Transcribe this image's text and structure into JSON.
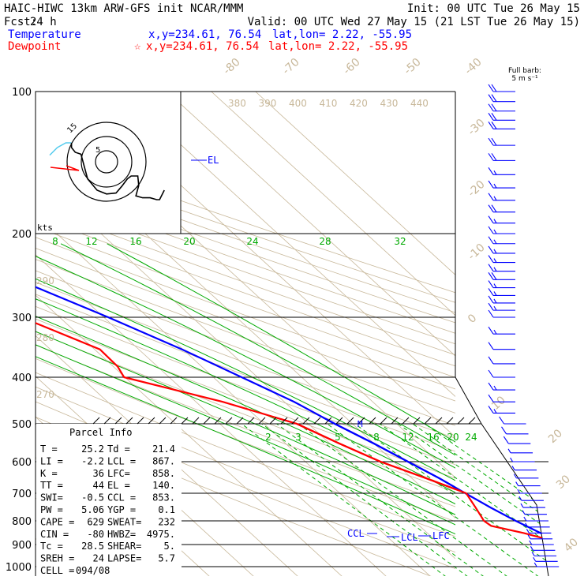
{
  "header": {
    "line1_left": "HAIC-HIWC 13km ARW-GFS init   NCAR/MMM",
    "line1_right": "Init: 00 UTC Tue 26 May 15",
    "fcst_label": "Fcst:",
    "fcst_value": "24 h",
    "valid": "Valid: 00 UTC Wed 27 May 15 (21 LST Tue 26 May 15)",
    "temp_label": "Temperature",
    "temp_xy": "x,y=234.61, 76.54",
    "temp_latlon": "lat,lon=  2.22, -55.95",
    "dew_label": "Dewpoint",
    "dew_marker": "☆",
    "dew_xy": "x,y=234.61, 76.54",
    "dew_latlon": "lat,lon=  2.22, -55.95"
  },
  "barb_key": {
    "line1": "Full barb:",
    "line2": "5 m s⁻¹"
  },
  "hodograph": {
    "units": "kts",
    "ring_labels": [
      "5",
      "15"
    ]
  },
  "parcel_info": {
    "title": "Parcel Info",
    "rows": [
      [
        "T  =",
        "25.2",
        "Td =",
        "21.4"
      ],
      [
        "LI =",
        "-2.2",
        "LCL =",
        "867."
      ],
      [
        "K  =",
        "36",
        "LFC=",
        "858."
      ],
      [
        "TT =",
        "44",
        "EL =",
        "140."
      ],
      [
        "SWI=",
        "-0.5",
        "CCL =",
        "853."
      ],
      [
        "PW =",
        "5.06",
        "YGP =",
        "0.1"
      ],
      [
        "CAPE =",
        "629",
        "SWEAT=",
        "232"
      ],
      [
        "CIN =",
        "-80",
        "HWBZ=",
        "4975."
      ],
      [
        "Tc =",
        "28.5",
        "SHEAR=",
        "5."
      ],
      [
        "SREH =",
        "24",
        "LAPSE=",
        "5.7"
      ],
      [
        "CELL =",
        "094/08",
        "",
        ""
      ]
    ]
  },
  "level_labels": {
    "EL": "EL",
    "CCL": "CCL",
    "LCL": "LCL",
    "LFC": "LFC",
    "M": "M"
  },
  "colors": {
    "temperature": "#0000ff",
    "dewpoint": "#ff0000",
    "moist_adiabat": "#00aa00",
    "dry_adiabat": "#c8b89a",
    "mixing_ratio": "#00aa00",
    "isobar": "#000000",
    "hodo_track": "#000000",
    "hodo_low": "#ff0000",
    "hodo_surface": "#55ccee"
  },
  "chart_data": {
    "type": "line",
    "xlabel": "",
    "ylabel": "",
    "pressure_ticks": [
      100,
      200,
      300,
      400,
      500,
      600,
      700,
      800,
      900,
      1000
    ],
    "isotherm_labels": [
      -80,
      -70,
      -60,
      -50,
      -40,
      -30,
      -20,
      -10,
      0,
      10,
      20,
      30,
      40
    ],
    "theta_labels_top": [
      380,
      390,
      400,
      410,
      420,
      430,
      440
    ],
    "theta_labels_left": [
      290,
      280,
      270
    ],
    "moist_adiabat_labels": [
      8,
      12,
      16,
      20,
      24,
      28,
      32
    ],
    "mixing_ratio_labels": [
      2,
      3,
      5,
      8,
      12,
      16,
      20,
      24
    ],
    "series": [
      {
        "name": "Temperature",
        "points": [
          [
            1000,
            24.5
          ],
          [
            960,
            23.2
          ],
          [
            930,
            20.6
          ],
          [
            900,
            18.4
          ],
          [
            850,
            15.6
          ],
          [
            800,
            13.0
          ],
          [
            750,
            10.6
          ],
          [
            700,
            8.4
          ],
          [
            650,
            6.2
          ],
          [
            600,
            3.2
          ],
          [
            550,
            0.0
          ],
          [
            500,
            -4.0
          ],
          [
            450,
            -7.8
          ],
          [
            400,
            -13.6
          ],
          [
            350,
            -20.2
          ],
          [
            300,
            -29.0
          ],
          [
            250,
            -40.2
          ],
          [
            200,
            -52.0
          ],
          [
            175,
            -60.0
          ],
          [
            150,
            -68.0
          ],
          [
            140,
            -71.0
          ],
          [
            125,
            -74.0
          ],
          [
            110,
            -71.5
          ],
          [
            100,
            -68.0
          ]
        ]
      },
      {
        "name": "Dewpoint",
        "points": [
          [
            1000,
            21.4
          ],
          [
            960,
            20.6
          ],
          [
            930,
            20.0
          ],
          [
            900,
            18.8
          ],
          [
            850,
            11.8
          ],
          [
            820,
            6.2
          ],
          [
            800,
            5.8
          ],
          [
            750,
            7.2
          ],
          [
            700,
            8.6
          ],
          [
            650,
            3.2
          ],
          [
            600,
            -3.0
          ],
          [
            550,
            -7.8
          ],
          [
            500,
            -12.6
          ],
          [
            450,
            -24.0
          ],
          [
            400,
            -40.2
          ],
          [
            380,
            -39.0
          ],
          [
            350,
            -38.8
          ],
          [
            300,
            -48.6
          ],
          [
            250,
            -58.6
          ],
          [
            200,
            -70.0
          ],
          [
            150,
            -80.5
          ],
          [
            125,
            -87.5
          ],
          [
            115,
            -88.5
          ],
          [
            100,
            -87.0
          ]
        ]
      }
    ],
    "hodograph": [
      [
        -6.0,
        -0.7
      ],
      [
        -5.2,
        -1.5
      ],
      [
        -4.3,
        -2.0
      ],
      [
        -3.7,
        -2.0
      ],
      [
        -3.7,
        -1.5
      ],
      [
        -3.3,
        -1.0
      ],
      [
        -2.7,
        -0.8
      ],
      [
        -2.0,
        1.8
      ],
      [
        -1.0,
        3.0
      ],
      [
        0.0,
        3.4
      ],
      [
        1.0,
        3.3
      ],
      [
        1.6,
        2.6
      ],
      [
        2.2,
        1.8
      ],
      [
        2.6,
        1.5
      ],
      [
        3.3,
        1.5
      ],
      [
        3.4,
        2.5
      ],
      [
        3.1,
        3.6
      ],
      [
        3.8,
        3.8
      ],
      [
        4.6,
        3.8
      ],
      [
        5.3,
        4.0
      ],
      [
        5.6,
        4.0
      ],
      [
        6.1,
        3.0
      ]
    ],
    "wind_barbs": [
      [
        100,
        22
      ],
      [
        105,
        22
      ],
      [
        110,
        22
      ],
      [
        115,
        22
      ],
      [
        120,
        22
      ],
      [
        130,
        22
      ],
      [
        140,
        18
      ],
      [
        150,
        17
      ],
      [
        160,
        17
      ],
      [
        170,
        17
      ],
      [
        180,
        18
      ],
      [
        190,
        17
      ],
      [
        200,
        17
      ],
      [
        210,
        17
      ],
      [
        220,
        17
      ],
      [
        230,
        17
      ],
      [
        240,
        17
      ],
      [
        250,
        20
      ],
      [
        260,
        17
      ],
      [
        270,
        14
      ],
      [
        280,
        15
      ],
      [
        290,
        13
      ],
      [
        300,
        12
      ],
      [
        325,
        13
      ],
      [
        350,
        12
      ],
      [
        375,
        11
      ],
      [
        400,
        11
      ],
      [
        425,
        14
      ],
      [
        450,
        11
      ],
      [
        475,
        14
      ],
      [
        500,
        12
      ],
      [
        525,
        10
      ],
      [
        550,
        8
      ],
      [
        575,
        7
      ],
      [
        600,
        7
      ],
      [
        625,
        6
      ],
      [
        650,
        6
      ],
      [
        675,
        6
      ],
      [
        700,
        6
      ],
      [
        725,
        5
      ],
      [
        750,
        5
      ],
      [
        775,
        5
      ],
      [
        800,
        5
      ],
      [
        825,
        5
      ],
      [
        850,
        5
      ],
      [
        875,
        6
      ],
      [
        900,
        6
      ],
      [
        925,
        7
      ],
      [
        950,
        6
      ],
      [
        975,
        5
      ],
      [
        1000,
        5
      ]
    ]
  }
}
